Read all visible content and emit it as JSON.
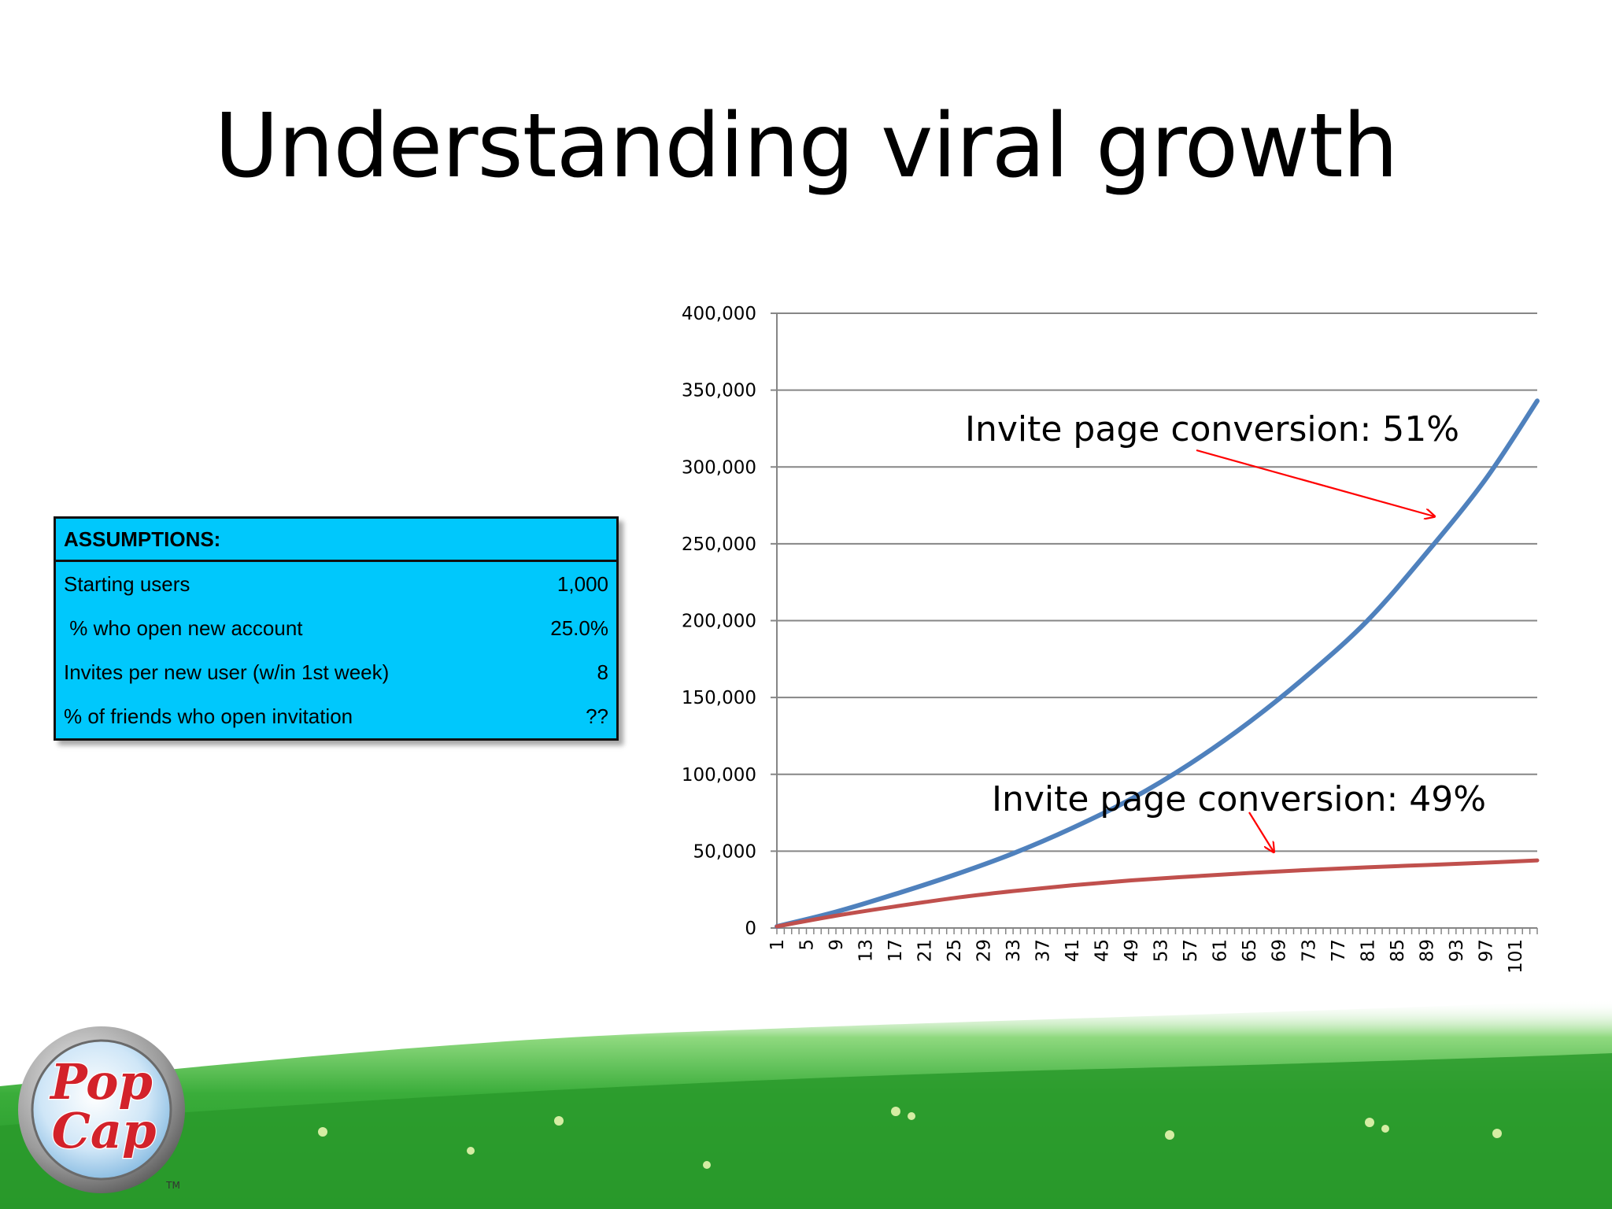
{
  "slide": {
    "title": "Understanding viral growth"
  },
  "assumptions": {
    "header": "ASSUMPTIONS:",
    "rows": [
      {
        "label": "Starting users",
        "value": "1,000"
      },
      {
        "label": " % who open new account",
        "value": "25.0%"
      },
      {
        "label": "Invites per new user (w/in 1st week)",
        "value": "8"
      },
      {
        "label": "% of friends who open invitation",
        "value": "??"
      }
    ]
  },
  "logo": {
    "line1": "Pop",
    "line2": "Cap",
    "tm": "TM"
  },
  "colors": {
    "series_blue": "#4f81bd",
    "series_red": "#c0504d",
    "arrow": "#ff0000",
    "table_fill": "#00c8fc",
    "grass": "#2a9a2c"
  },
  "chart_data": {
    "type": "line",
    "xlabel": "",
    "ylabel": "",
    "xlim": [
      1,
      104
    ],
    "ylim": [
      0,
      400000
    ],
    "y_ticks": [
      0,
      50000,
      100000,
      150000,
      200000,
      250000,
      300000,
      350000,
      400000
    ],
    "y_tick_labels": [
      "0",
      "50,000",
      "100,000",
      "150,000",
      "200,000",
      "250,000",
      "300,000",
      "350,000",
      "400,000"
    ],
    "x_tick_labels": [
      "1",
      "5",
      "9",
      "13",
      "17",
      "21",
      "25",
      "29",
      "33",
      "37",
      "41",
      "45",
      "49",
      "53",
      "57",
      "61",
      "65",
      "69",
      "73",
      "77",
      "81",
      "85",
      "89",
      "93",
      "97",
      "101"
    ],
    "grid": "horizontal",
    "legend": "none",
    "series": [
      {
        "color": "#4f81bd",
        "x": [
          1,
          9,
          17,
          25,
          33,
          41,
          49,
          57,
          65,
          73,
          81,
          89,
          97,
          104
        ],
        "y": [
          1000,
          10500,
          22000,
          34500,
          48500,
          65000,
          84000,
          107000,
          134000,
          165000,
          200000,
          244000,
          292000,
          343000
        ]
      },
      {
        "color": "#c0504d",
        "x": [
          1,
          9,
          17,
          25,
          33,
          41,
          49,
          57,
          65,
          73,
          81,
          89,
          97,
          104
        ],
        "y": [
          1000,
          8000,
          14000,
          19500,
          24000,
          27800,
          31000,
          33500,
          35800,
          37800,
          39500,
          41000,
          42500,
          44000
        ]
      }
    ],
    "annotations": [
      {
        "text": "Invite page conversion: 51%",
        "target": "series 1"
      },
      {
        "text": "Invite page conversion: 49%",
        "target": "series 2"
      }
    ]
  }
}
